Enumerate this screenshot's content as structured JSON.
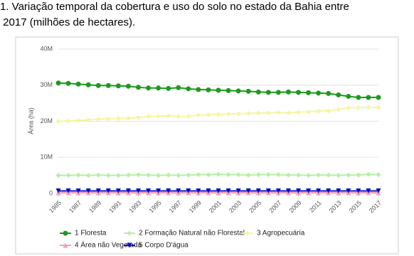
{
  "caption": [
    "1. Variação temporal da cobertura e uso do solo no estado da Bahia entre",
    " 2017 (milhões de hectares)."
  ],
  "chart_data": {
    "type": "line",
    "y_label": "Área (ha)",
    "x": [
      1985,
      1986,
      1987,
      1988,
      1989,
      1990,
      1991,
      1992,
      1993,
      1994,
      1995,
      1996,
      1997,
      1998,
      1999,
      2000,
      2001,
      2002,
      2003,
      2004,
      2005,
      2006,
      2007,
      2008,
      2009,
      2010,
      2011,
      2012,
      2013,
      2014,
      2015,
      2016,
      2017
    ],
    "xlim": [
      1985,
      2017
    ],
    "xticks": [
      1985,
      1987,
      1989,
      1991,
      1993,
      1995,
      1997,
      1999,
      2001,
      2003,
      2005,
      2007,
      2009,
      2011,
      2013,
      2015,
      2017
    ],
    "ylim": [
      0,
      40000000
    ],
    "yticks": [
      0,
      {
        "value": 10000000,
        "label": "10M"
      },
      {
        "value": 20000000,
        "label": "20M"
      },
      {
        "value": 30000000,
        "label": "30M"
      },
      {
        "value": 40000000,
        "label": "40M"
      }
    ],
    "grid": true,
    "legend": "bottom",
    "series": [
      {
        "name": "1 Floresta",
        "color": "#1e9a1e",
        "marker": "circle",
        "values": [
          30600000,
          30500000,
          30300000,
          30100000,
          29900000,
          29900000,
          29800000,
          29700000,
          29400000,
          29200000,
          29200000,
          29100000,
          29300000,
          29000000,
          28800000,
          28700000,
          28600000,
          28500000,
          28400000,
          28300000,
          28100000,
          28000000,
          28000000,
          28100000,
          28000000,
          27900000,
          27800000,
          27700000,
          27300000,
          26900000,
          26600000,
          26600000,
          26600000
        ]
      },
      {
        "name": "2 Formação Natural não Florestal",
        "color": "#b6eea6",
        "marker": "diamond",
        "values": [
          5000000,
          5000000,
          5100000,
          5000000,
          5100000,
          5000000,
          5000000,
          5100000,
          5200000,
          5100000,
          5000000,
          5100000,
          5000000,
          5100000,
          5200000,
          5200000,
          5300000,
          5200000,
          5200000,
          5100000,
          5200000,
          5200000,
          5200000,
          5100000,
          5100000,
          5000000,
          5100000,
          5100000,
          5000000,
          5100000,
          5100000,
          5300000,
          5200000
        ]
      },
      {
        "name": "3 Agropecuária",
        "color": "#f6f5a2",
        "marker": "diamond",
        "values": [
          20000000,
          20100000,
          20200000,
          20400000,
          20600000,
          20700000,
          20800000,
          20800000,
          21000000,
          21300000,
          21400000,
          21500000,
          21300000,
          21400000,
          21700000,
          21800000,
          21900000,
          22000000,
          22100000,
          22200000,
          22300000,
          22300000,
          22400000,
          22300000,
          22500000,
          22600000,
          22800000,
          22900000,
          23300000,
          23700000,
          23800000,
          23900000,
          23800000
        ]
      },
      {
        "name": "4 Área não Vegetada",
        "color": "#f2a3b3",
        "marker": "triangle-up",
        "values": [
          200000,
          200000,
          200000,
          200000,
          200000,
          200000,
          200000,
          200000,
          200000,
          200000,
          200000,
          200000,
          200000,
          200000,
          200000,
          200000,
          200000,
          200000,
          200000,
          200000,
          200000,
          200000,
          200000,
          200000,
          200000,
          200000,
          200000,
          200000,
          200000,
          200000,
          200000,
          200000,
          200000
        ]
      },
      {
        "name": "5 Corpo D'água",
        "color": "#1010c8",
        "marker": "triangle-down",
        "values": [
          700000,
          700000,
          700000,
          700000,
          700000,
          700000,
          700000,
          700000,
          700000,
          700000,
          700000,
          700000,
          700000,
          700000,
          700000,
          700000,
          700000,
          700000,
          700000,
          700000,
          700000,
          700000,
          700000,
          700000,
          700000,
          700000,
          700000,
          700000,
          700000,
          700000,
          700000,
          700000,
          700000
        ]
      }
    ]
  }
}
